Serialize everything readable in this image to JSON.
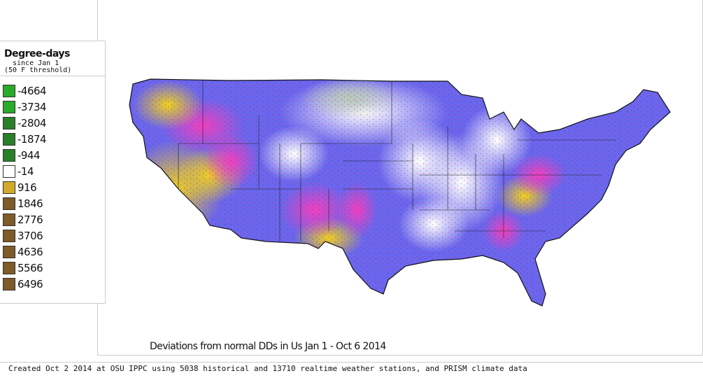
{
  "legend": {
    "title": "Degree-days",
    "subtitle": "since Jan 1",
    "threshold": "(50 F threshold)",
    "items": [
      {
        "label": "-4664",
        "color": "#2aaa2a"
      },
      {
        "label": "-3734",
        "color": "#2aaa2a"
      },
      {
        "label": "-2804",
        "color": "#2a7f2a"
      },
      {
        "label": "-1874",
        "color": "#2a7f2a"
      },
      {
        "label": "-944",
        "color": "#2a7f2a"
      },
      {
        "label": "-14",
        "color": "#ffffff"
      },
      {
        "label": "916",
        "color": "#d4aa2a"
      },
      {
        "label": "1846",
        "color": "#7f5a2a"
      },
      {
        "label": "2776",
        "color": "#7f5a2a"
      },
      {
        "label": "3706",
        "color": "#7f5a2a"
      },
      {
        "label": "4636",
        "color": "#7f5a2a"
      },
      {
        "label": "5566",
        "color": "#7f5a2a"
      },
      {
        "label": "6496",
        "color": "#7f5a2a"
      }
    ]
  },
  "map": {
    "region": "Contiguous United States",
    "colors": {
      "above_normal": "#f0d020",
      "strong_above": "#f040c0",
      "below_normal": "#6060f0",
      "near_normal": "#ffffff",
      "station_dots": "#e02020"
    }
  },
  "title": "Deviations from normal DDs in Us  Jan 1 - Oct 6 2014",
  "footer": "Created Oct 2 2014 at OSU IPPC using 5038 historical and 13710 realtime weather stations, and PRISM climate data"
}
